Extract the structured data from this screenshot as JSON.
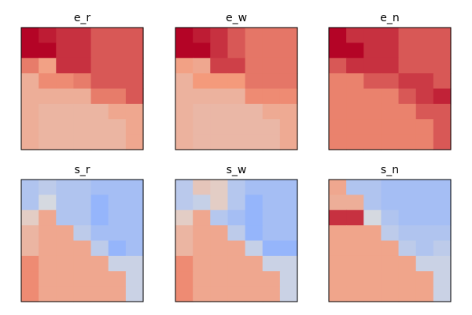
{
  "chart_data": [
    {
      "type": "heatmap",
      "title": "e_r",
      "rows": 8,
      "cols": 7,
      "cells": [
        [
          1.0,
          0.92,
          0.85,
          0.85,
          0.72,
          0.72,
          0.72
        ],
        [
          1.0,
          1.0,
          0.85,
          0.85,
          0.72,
          0.72,
          0.72
        ],
        [
          0.6,
          0.45,
          0.85,
          0.85,
          0.72,
          0.72,
          0.72
        ],
        [
          0.35,
          0.55,
          0.55,
          0.6,
          0.72,
          0.72,
          0.72
        ],
        [
          0.35,
          0.35,
          0.35,
          0.35,
          0.6,
          0.6,
          0.72
        ],
        [
          0.35,
          0.3,
          0.3,
          0.3,
          0.3,
          0.4,
          0.4
        ],
        [
          0.35,
          0.3,
          0.3,
          0.3,
          0.3,
          0.3,
          0.4
        ],
        [
          0.35,
          0.3,
          0.3,
          0.3,
          0.3,
          0.3,
          0.4
        ]
      ]
    },
    {
      "type": "heatmap",
      "title": "e_w",
      "rows": 8,
      "cols": 7,
      "cells": [
        [
          1.0,
          0.92,
          0.85,
          0.72,
          0.62,
          0.62,
          0.62
        ],
        [
          1.0,
          1.0,
          0.85,
          0.72,
          0.62,
          0.62,
          0.62
        ],
        [
          0.45,
          0.4,
          0.8,
          0.8,
          0.62,
          0.62,
          0.62
        ],
        [
          0.32,
          0.5,
          0.5,
          0.5,
          0.62,
          0.62,
          0.62
        ],
        [
          0.32,
          0.32,
          0.32,
          0.32,
          0.55,
          0.55,
          0.55
        ],
        [
          0.32,
          0.28,
          0.28,
          0.28,
          0.28,
          0.38,
          0.38
        ],
        [
          0.32,
          0.28,
          0.28,
          0.28,
          0.28,
          0.28,
          0.38
        ],
        [
          0.32,
          0.28,
          0.28,
          0.28,
          0.28,
          0.28,
          0.38
        ]
      ]
    },
    {
      "type": "heatmap",
      "title": "e_n",
      "rows": 8,
      "cols": 7,
      "cells": [
        [
          1.0,
          0.85,
          0.85,
          0.85,
          0.72,
          0.72,
          0.72
        ],
        [
          1.0,
          1.0,
          0.85,
          0.85,
          0.72,
          0.72,
          0.72
        ],
        [
          0.72,
          0.85,
          0.85,
          0.85,
          0.72,
          0.72,
          0.72
        ],
        [
          0.58,
          0.58,
          0.72,
          0.72,
          0.82,
          0.82,
          0.72
        ],
        [
          0.58,
          0.58,
          0.58,
          0.58,
          0.72,
          0.82,
          0.9
        ],
        [
          0.58,
          0.58,
          0.58,
          0.58,
          0.58,
          0.72,
          0.72
        ],
        [
          0.58,
          0.58,
          0.58,
          0.58,
          0.58,
          0.58,
          0.72
        ],
        [
          0.58,
          0.58,
          0.58,
          0.58,
          0.58,
          0.58,
          0.72
        ]
      ]
    },
    {
      "type": "heatmap",
      "title": "s_r",
      "rows": 8,
      "cols": 7,
      "cells": [
        [
          -0.28,
          -0.2,
          -0.28,
          -0.28,
          -0.35,
          -0.35,
          -0.35
        ],
        [
          -0.28,
          -0.05,
          -0.28,
          -0.28,
          -0.45,
          -0.35,
          -0.35
        ],
        [
          0.12,
          0.4,
          -0.28,
          -0.28,
          -0.45,
          -0.35,
          -0.35
        ],
        [
          0.3,
          0.4,
          0.4,
          -0.2,
          -0.35,
          -0.35,
          -0.35
        ],
        [
          0.3,
          0.4,
          0.4,
          0.4,
          -0.2,
          -0.45,
          -0.35
        ],
        [
          0.55,
          0.4,
          0.4,
          0.4,
          0.4,
          -0.12,
          -0.12
        ],
        [
          0.55,
          0.4,
          0.4,
          0.4,
          0.4,
          0.4,
          -0.12
        ],
        [
          0.55,
          0.4,
          0.4,
          0.4,
          0.4,
          0.4,
          -0.12
        ]
      ]
    },
    {
      "type": "heatmap",
      "title": "s_w",
      "rows": 8,
      "cols": 7,
      "cells": [
        [
          -0.22,
          0.18,
          0.12,
          -0.25,
          -0.35,
          -0.35,
          -0.35
        ],
        [
          -0.22,
          -0.15,
          0.12,
          -0.25,
          -0.45,
          -0.35,
          -0.35
        ],
        [
          0.12,
          0.4,
          -0.25,
          -0.35,
          -0.45,
          -0.35,
          -0.35
        ],
        [
          0.3,
          0.4,
          0.4,
          -0.2,
          -0.45,
          -0.35,
          -0.35
        ],
        [
          0.3,
          0.4,
          0.4,
          0.4,
          -0.15,
          -0.45,
          -0.45
        ],
        [
          0.55,
          0.4,
          0.4,
          0.4,
          0.4,
          -0.12,
          -0.12
        ],
        [
          0.55,
          0.4,
          0.4,
          0.4,
          0.4,
          0.4,
          -0.12
        ],
        [
          0.55,
          0.4,
          0.4,
          0.4,
          0.4,
          0.4,
          -0.12
        ]
      ]
    },
    {
      "type": "heatmap",
      "title": "s_n",
      "rows": 8,
      "cols": 7,
      "cells": [
        [
          0.4,
          -0.28,
          -0.28,
          -0.35,
          -0.35,
          -0.35,
          -0.35
        ],
        [
          0.35,
          0.35,
          -0.28,
          -0.35,
          -0.35,
          -0.35,
          -0.35
        ],
        [
          0.85,
          0.85,
          -0.05,
          -0.28,
          -0.35,
          -0.35,
          -0.35
        ],
        [
          0.42,
          0.42,
          0.42,
          -0.2,
          -0.28,
          -0.28,
          -0.28
        ],
        [
          0.42,
          0.42,
          0.42,
          0.42,
          -0.2,
          -0.28,
          -0.2
        ],
        [
          0.42,
          0.42,
          0.42,
          0.42,
          0.42,
          -0.12,
          -0.12
        ],
        [
          0.42,
          0.42,
          0.42,
          0.42,
          0.42,
          0.42,
          -0.12
        ],
        [
          0.42,
          0.42,
          0.42,
          0.42,
          0.42,
          0.42,
          -0.12
        ]
      ]
    }
  ],
  "colormap": "coolwarm",
  "value_range": [
    -1,
    1
  ],
  "frame_color": "#000000"
}
